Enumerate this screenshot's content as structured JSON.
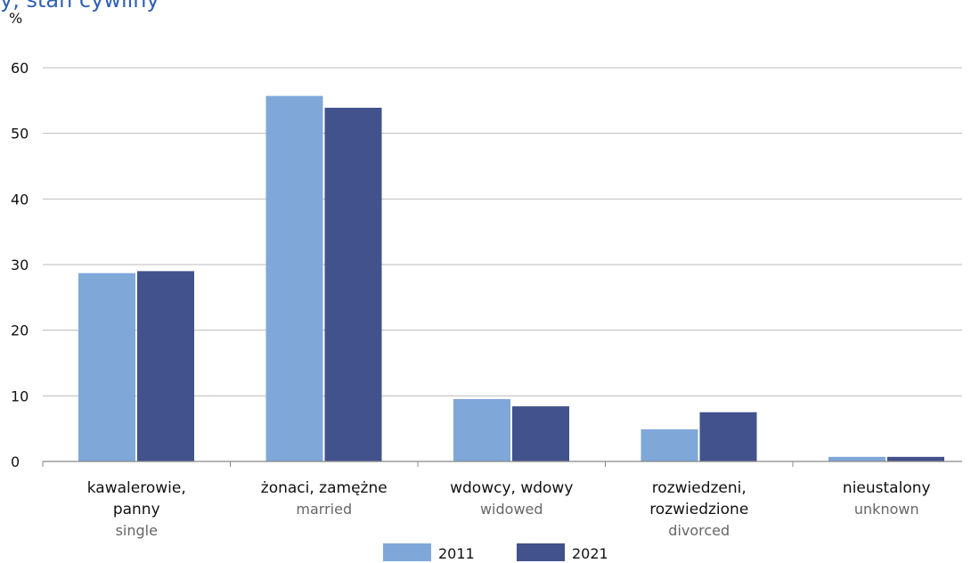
{
  "title_fragment": "y, stan cywilny",
  "chart_data": {
    "type": "bar",
    "title": "",
    "ylabel": "%",
    "ylim": [
      0,
      60
    ],
    "yticks": [
      0,
      10,
      20,
      30,
      40,
      50,
      60
    ],
    "grid": true,
    "legend_position": "bottom-center",
    "categories": [
      {
        "pl": [
          "kawalerowie,",
          "panny"
        ],
        "en": "single"
      },
      {
        "pl": [
          "żonaci, zamężne"
        ],
        "en": "married"
      },
      {
        "pl": [
          "wdowcy, wdowy"
        ],
        "en": "widowed"
      },
      {
        "pl": [
          "rozwiedzeni,",
          "rozwiedzione"
        ],
        "en": "divorced"
      },
      {
        "pl": [
          "nieustalony"
        ],
        "en": "unknown"
      }
    ],
    "series": [
      {
        "name": "2011",
        "color": "#7fa8d9",
        "values": [
          28.7,
          55.7,
          9.5,
          4.9,
          0.7
        ]
      },
      {
        "name": "2021",
        "color": "#41528c",
        "values": [
          29.0,
          53.9,
          8.4,
          7.5,
          0.7
        ]
      }
    ]
  },
  "colors": {
    "axis": "#888888",
    "grid": "#bbbbbb",
    "text": "#111111",
    "subtext": "#666666"
  }
}
